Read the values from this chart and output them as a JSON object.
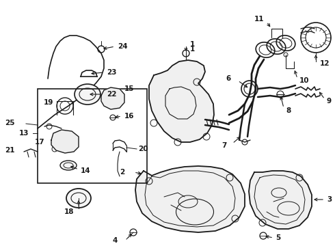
{
  "bg_color": "#ffffff",
  "line_color": "#1a1a1a",
  "fig_width": 4.9,
  "fig_height": 3.6,
  "dpi": 100,
  "font_size": 7.5
}
